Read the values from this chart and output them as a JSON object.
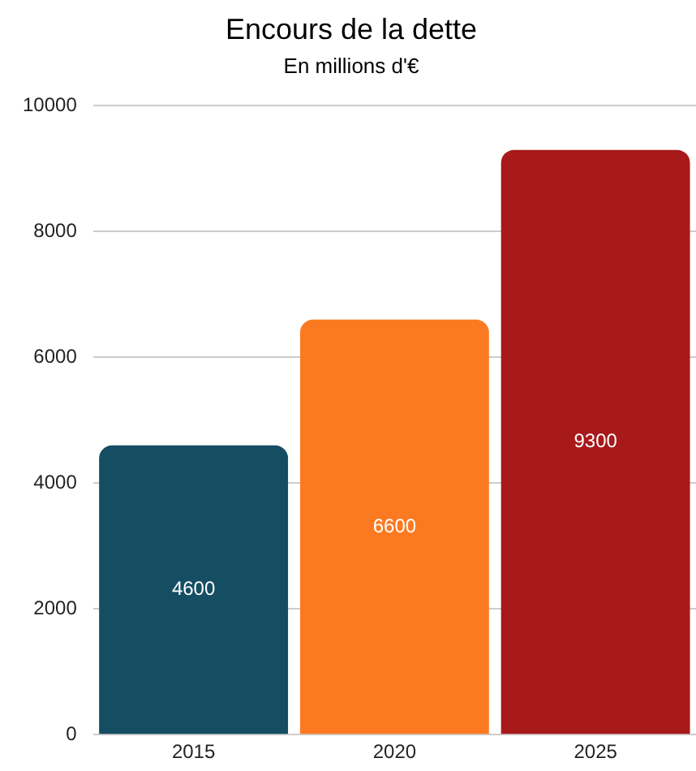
{
  "chart_data": {
    "type": "bar",
    "title": "Encours de la dette",
    "subtitle": "En millions d'€",
    "categories": [
      "2015",
      "2020",
      "2025"
    ],
    "values": [
      4600,
      6600,
      9300
    ],
    "colors": [
      "#154d63",
      "#fb7a21",
      "#a8191a"
    ],
    "ylim": [
      0,
      10000
    ],
    "yticks": [
      0,
      2000,
      4000,
      6000,
      8000,
      10000
    ],
    "grid": "y",
    "data_labels": true
  }
}
